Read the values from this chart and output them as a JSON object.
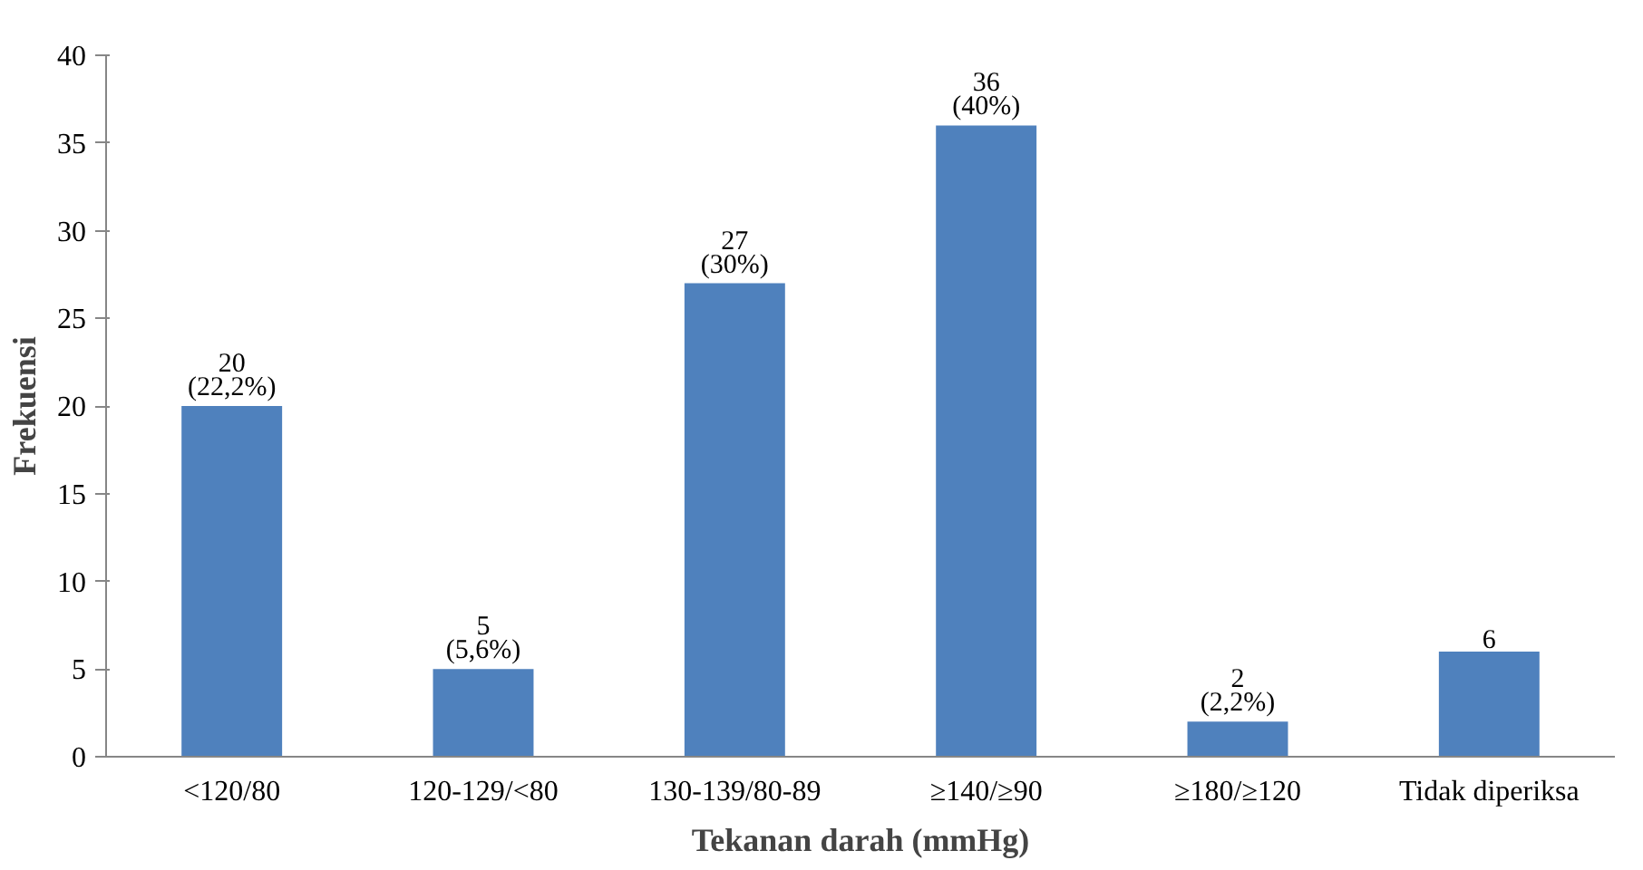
{
  "chart_data": {
    "type": "bar",
    "xlabel": "Tekanan darah (mmHg)",
    "ylabel": "Frekuensi",
    "categories": [
      "<120/80",
      "120-129/<80",
      "130-139/80-89",
      "≥140/≥90",
      "≥180/≥120",
      "Tidak diperiksa"
    ],
    "values": [
      20,
      5,
      27,
      36,
      2,
      6
    ],
    "value_labels": [
      "20\n(22,2%)",
      "5\n(5,6%)",
      "27\n(30%)",
      "36\n(40%)",
      "2\n(2,2%)",
      "6"
    ],
    "color": "#4f81bd",
    "ylim": [
      0,
      40
    ],
    "yticks": [
      0,
      5,
      10,
      15,
      20,
      25,
      30,
      35,
      40
    ],
    "grid": false
  }
}
